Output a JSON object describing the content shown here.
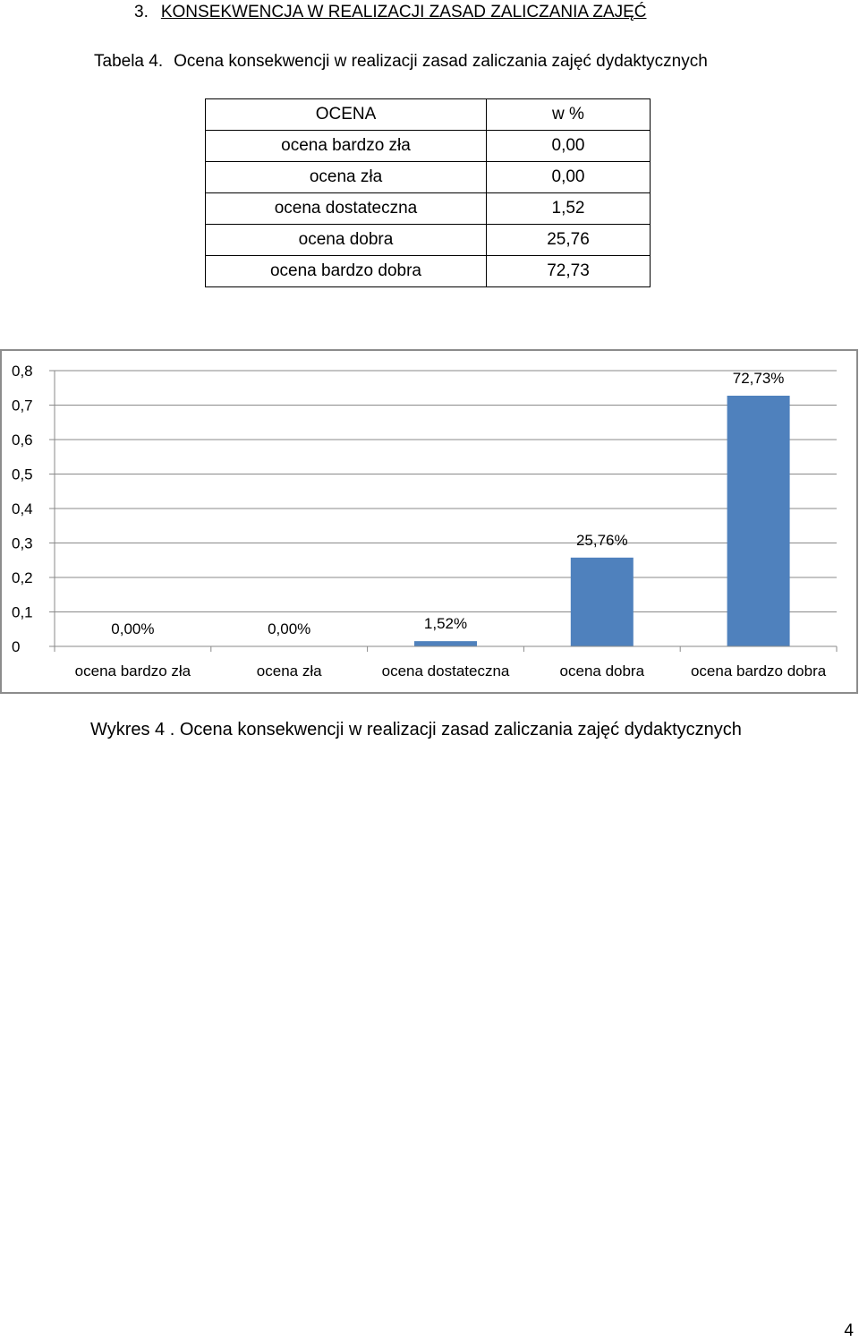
{
  "heading": {
    "number": "3.",
    "text": "KONSEKWENCJA W REALIZACJI ZASAD ZALICZANIA ZAJĘĆ"
  },
  "table": {
    "caption_label": "Tabela 4.",
    "caption_text": "Ocena konsekwencji w realizacji zasad zaliczania zajęć dydaktycznych",
    "headers": [
      "OCENA",
      "w  %"
    ],
    "rows": [
      {
        "label": "ocena bardzo zła",
        "value": "0,00"
      },
      {
        "label": "ocena zła",
        "value": "0,00"
      },
      {
        "label": "ocena dostateczna",
        "value": "1,52"
      },
      {
        "label": "ocena dobra",
        "value": "25,76"
      },
      {
        "label": "ocena bardzo dobra",
        "value": "72,73"
      }
    ]
  },
  "chart_data": {
    "type": "bar",
    "categories": [
      "ocena bardzo zła",
      "ocena zła",
      "ocena dostateczna",
      "ocena dobra",
      "ocena bardzo dobra"
    ],
    "values": [
      0.0,
      0.0,
      0.0152,
      0.2576,
      0.7273
    ],
    "data_labels": [
      "0,00%",
      "0,00%",
      "1,52%",
      "25,76%",
      "72,73%"
    ],
    "y_ticks": [
      "0",
      "0,1",
      "0,2",
      "0,3",
      "0,4",
      "0,5",
      "0,6",
      "0,7",
      "0,8"
    ],
    "ylim": [
      0,
      0.8
    ],
    "grid": true,
    "legend": "none",
    "bar_color": "#4f81bd",
    "title": "",
    "xlabel": "",
    "ylabel": ""
  },
  "chart_caption": "Wykres 4 . Ocena konsekwencji w realizacji zasad zaliczania zajęć dydaktycznych",
  "page_number": "4"
}
